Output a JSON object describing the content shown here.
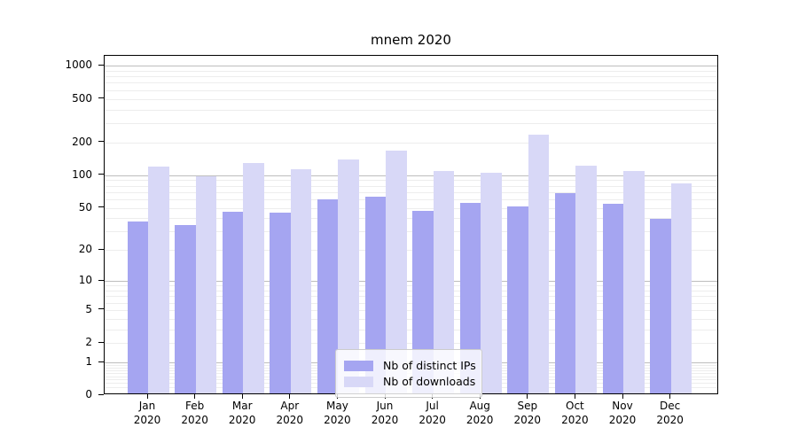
{
  "title": "mnem 2020",
  "colors": {
    "ips_bar": "#a5a5f1",
    "downloads_bar": "#d8d8f7",
    "major_grid": "#bdbdbd",
    "minor_grid": "#ededed"
  },
  "legend": {
    "items": [
      {
        "label": "Nb of distinct IPs",
        "series": "ips"
      },
      {
        "label": "Nb of downloads",
        "series": "downloads"
      }
    ]
  },
  "chart_data": {
    "type": "bar",
    "title": "mnem 2020",
    "categories": [
      "Jan 2020",
      "Feb 2020",
      "Mar 2020",
      "Apr 2020",
      "May 2020",
      "Jun 2020",
      "Jul 2020",
      "Aug 2020",
      "Sep 2020",
      "Oct 2020",
      "Nov 2020",
      "Dec 2020"
    ],
    "series": [
      {
        "name": "Nb of distinct IPs",
        "key": "ips",
        "values": [
          36,
          33,
          44,
          43,
          57,
          61,
          45,
          53,
          49,
          66,
          52,
          38
        ]
      },
      {
        "name": "Nb of downloads",
        "key": "downloads",
        "values": [
          115,
          94,
          125,
          108,
          133,
          162,
          105,
          101,
          225,
          117,
          105,
          80
        ]
      }
    ],
    "y_axis": {
      "scale": "log(value+1)",
      "ticks": [
        1000,
        500,
        200,
        100,
        50,
        20,
        10,
        5,
        2,
        1,
        0
      ],
      "major_gridlines": [
        1,
        10,
        100,
        1000
      ],
      "range": [
        0,
        1230
      ]
    },
    "x_axis": {
      "tick_label_line2": "2020"
    },
    "grid": true,
    "legend_position": "lower center"
  }
}
